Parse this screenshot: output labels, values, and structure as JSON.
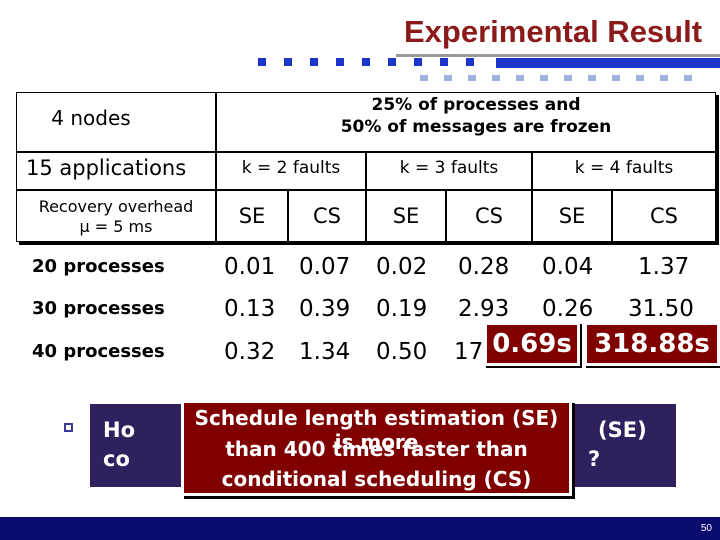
{
  "slide": {
    "title": "Experimental Result",
    "page_number": "50"
  },
  "table": {
    "nodes_label": "4 nodes",
    "frozen_line1": "25% of processes and",
    "frozen_line2": "50% of messages are frozen",
    "applications_label": "15 applications",
    "fault_columns": [
      "k = 2 faults",
      "k = 3 faults",
      "k = 4 faults"
    ],
    "overhead_line1": "Recovery overhead",
    "overhead_line2": "μ = 5 ms",
    "method_columns": [
      "SE",
      "CS",
      "SE",
      "CS",
      "SE",
      "CS"
    ],
    "rows": [
      {
        "label": "20 processes",
        "values": [
          "0.01",
          "0.07",
          "0.02",
          "0.28",
          "0.04",
          "1.37"
        ]
      },
      {
        "label": "30 processes",
        "values": [
          "0.13",
          "0.39",
          "0.19",
          "2.93",
          "0.26",
          "31.50"
        ]
      },
      {
        "label": "40 processes",
        "values": [
          "0.32",
          "1.34",
          "0.50",
          "17",
          "",
          ""
        ]
      }
    ],
    "highlights": [
      "0.69s",
      "318.88s"
    ]
  },
  "question": {
    "line1_start": "Ho",
    "line1_end": "(SE)",
    "line2_start": "co",
    "line2_end": "?"
  },
  "callout": {
    "line1": "Schedule length estimation (SE) is more",
    "line2": "than 400 times faster than",
    "line3": "conditional scheduling (CS)"
  },
  "colors": {
    "title": "#8b1a1a",
    "accent_blue": "#1c36c9",
    "callout_bg": "#800000",
    "question_bg": "#31205e",
    "footer_bg": "#0b0b6e"
  }
}
